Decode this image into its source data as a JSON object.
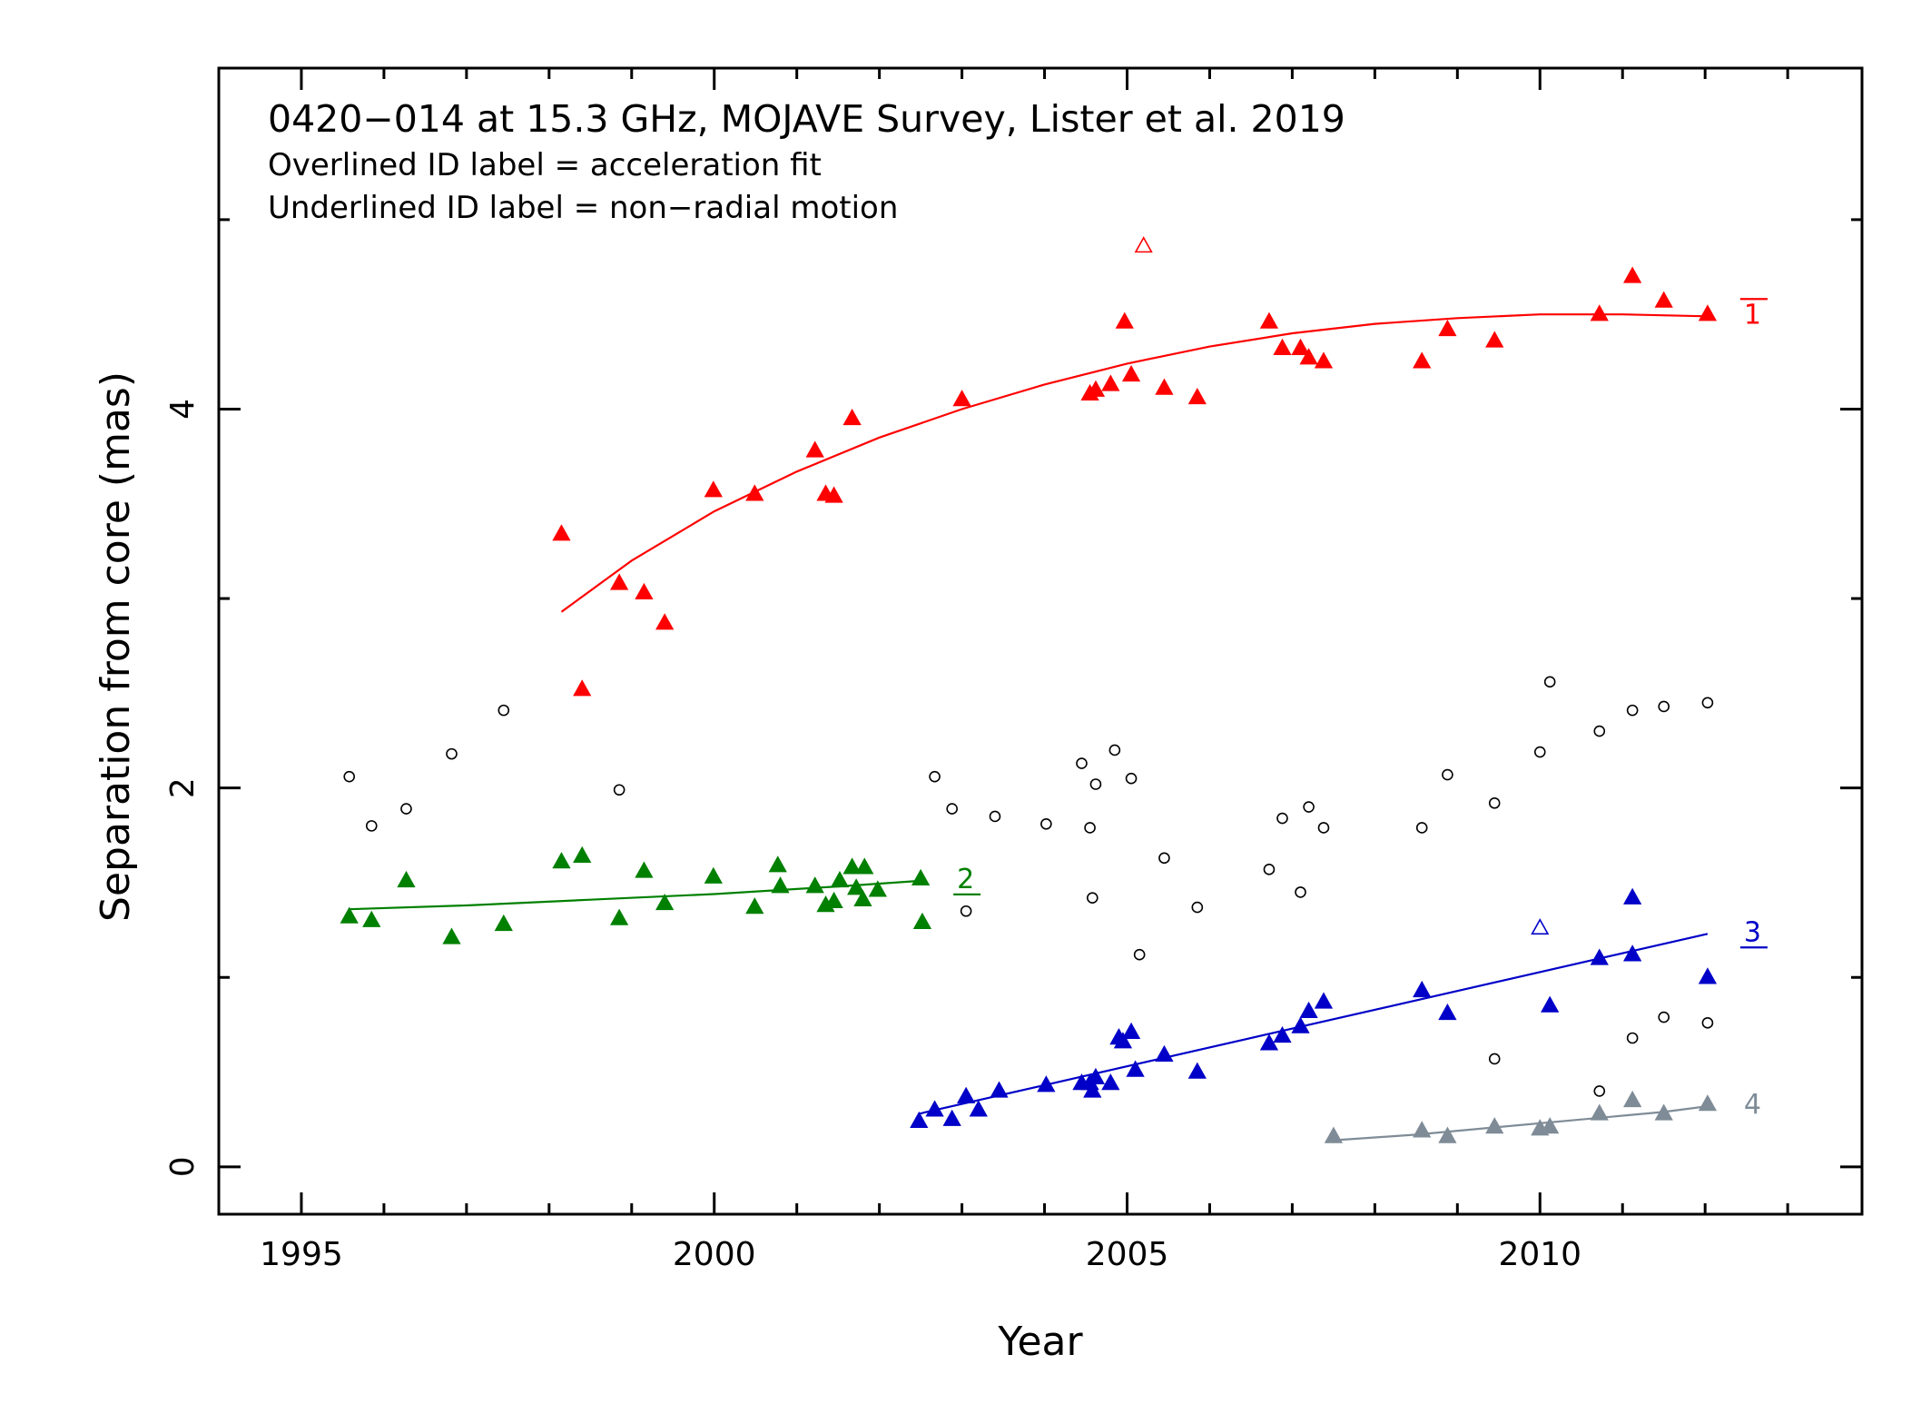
{
  "chart_data": {
    "type": "scatter",
    "title": "0420−014 at 15.3 GHz, MOJAVE Survey, Lister et al. 2019",
    "notes": [
      "Overlined ID label = acceleration fit",
      "Underlined ID label = non−radial motion"
    ],
    "xlabel": "Year",
    "ylabel": "Separation from core (mas)",
    "xlim": [
      1994,
      2013.9
    ],
    "ylim": [
      -0.25,
      5.8
    ],
    "xticks": [
      1995,
      2000,
      2005,
      2010
    ],
    "yticks": [
      0,
      2,
      4
    ],
    "series": [
      {
        "name": "1",
        "label_style": "overline",
        "color": "#ff0000",
        "points": [
          [
            1998.15,
            3.34
          ],
          [
            1998.4,
            2.52
          ],
          [
            1998.85,
            3.08
          ],
          [
            1999.15,
            3.03
          ],
          [
            1999.4,
            2.87
          ],
          [
            1999.99,
            3.57
          ],
          [
            2000.49,
            3.55
          ],
          [
            2001.22,
            3.78
          ],
          [
            2001.35,
            3.55
          ],
          [
            2001.45,
            3.54
          ],
          [
            2001.67,
            3.95
          ],
          [
            2003.0,
            4.05
          ],
          [
            2004.55,
            4.08
          ],
          [
            2004.62,
            4.1
          ],
          [
            2004.8,
            4.13
          ],
          [
            2004.97,
            4.46
          ],
          [
            2005.05,
            4.18
          ],
          [
            2005.45,
            4.11
          ],
          [
            2005.85,
            4.06
          ],
          [
            2006.72,
            4.46
          ],
          [
            2006.88,
            4.32
          ],
          [
            2007.1,
            4.32
          ],
          [
            2007.2,
            4.27
          ],
          [
            2007.38,
            4.25
          ],
          [
            2008.57,
            4.25
          ],
          [
            2008.88,
            4.42
          ],
          [
            2009.45,
            4.36
          ],
          [
            2010.72,
            4.5
          ],
          [
            2011.12,
            4.7
          ],
          [
            2011.5,
            4.57
          ],
          [
            2012.03,
            4.5
          ]
        ],
        "open_points": [
          [
            2005.2,
            4.86
          ]
        ],
        "fit": [
          [
            1998.15,
            2.93
          ],
          [
            1999.0,
            3.2
          ],
          [
            2000.0,
            3.46
          ],
          [
            2001.0,
            3.67
          ],
          [
            2002.0,
            3.85
          ],
          [
            2003.0,
            4.0
          ],
          [
            2004.0,
            4.13
          ],
          [
            2005.0,
            4.24
          ],
          [
            2006.0,
            4.33
          ],
          [
            2007.0,
            4.4
          ],
          [
            2008.0,
            4.45
          ],
          [
            2009.0,
            4.48
          ],
          [
            2010.0,
            4.5
          ],
          [
            2011.0,
            4.5
          ],
          [
            2012.03,
            4.49
          ]
        ]
      },
      {
        "name": "2",
        "label_style": "underline",
        "color": "#008000",
        "points": [
          [
            1995.58,
            1.32
          ],
          [
            1995.85,
            1.3
          ],
          [
            1996.27,
            1.51
          ],
          [
            1996.82,
            1.21
          ],
          [
            1997.45,
            1.28
          ],
          [
            1998.15,
            1.61
          ],
          [
            1998.4,
            1.64
          ],
          [
            1998.85,
            1.31
          ],
          [
            1999.15,
            1.56
          ],
          [
            1999.4,
            1.39
          ],
          [
            1999.99,
            1.53
          ],
          [
            2000.49,
            1.37
          ],
          [
            2000.77,
            1.59
          ],
          [
            2000.8,
            1.48
          ],
          [
            2001.22,
            1.48
          ],
          [
            2001.35,
            1.38
          ],
          [
            2001.45,
            1.4
          ],
          [
            2001.52,
            1.51
          ],
          [
            2001.67,
            1.58
          ],
          [
            2001.72,
            1.47
          ],
          [
            2001.8,
            1.41
          ],
          [
            2001.82,
            1.58
          ],
          [
            2001.98,
            1.46
          ],
          [
            2002.5,
            1.52
          ],
          [
            2002.52,
            1.29
          ]
        ],
        "open_points": [],
        "fit": [
          [
            1995.58,
            1.36
          ],
          [
            1997.0,
            1.38
          ],
          [
            1998.5,
            1.41
          ],
          [
            2000.0,
            1.44
          ],
          [
            2001.5,
            1.48
          ],
          [
            2002.5,
            1.51
          ]
        ]
      },
      {
        "name": "3",
        "label_style": "underline",
        "color": "#0000c8",
        "points": [
          [
            2002.48,
            0.24
          ],
          [
            2002.67,
            0.3
          ],
          [
            2002.88,
            0.25
          ],
          [
            2003.05,
            0.37
          ],
          [
            2003.2,
            0.3
          ],
          [
            2003.45,
            0.4
          ],
          [
            2004.02,
            0.43
          ],
          [
            2004.45,
            0.44
          ],
          [
            2004.55,
            0.44
          ],
          [
            2004.58,
            0.4
          ],
          [
            2004.62,
            0.47
          ],
          [
            2004.8,
            0.44
          ],
          [
            2004.9,
            0.68
          ],
          [
            2004.95,
            0.66
          ],
          [
            2005.05,
            0.71
          ],
          [
            2005.1,
            0.51
          ],
          [
            2005.45,
            0.59
          ],
          [
            2005.85,
            0.5
          ],
          [
            2006.72,
            0.65
          ],
          [
            2006.88,
            0.69
          ],
          [
            2007.1,
            0.74
          ],
          [
            2007.2,
            0.82
          ],
          [
            2007.38,
            0.87
          ],
          [
            2008.57,
            0.93
          ],
          [
            2008.88,
            0.81
          ],
          [
            2010.12,
            0.85
          ],
          [
            2010.72,
            1.1
          ],
          [
            2011.12,
            1.42
          ],
          [
            2011.12,
            1.12
          ],
          [
            2012.03,
            1.0
          ]
        ],
        "open_points": [
          [
            2010.0,
            1.26
          ]
        ],
        "fit": [
          [
            2002.48,
            0.28
          ],
          [
            2012.03,
            1.23
          ]
        ]
      },
      {
        "name": "4",
        "label_style": "plain",
        "color": "#7f8c97",
        "points": [
          [
            2007.5,
            0.16
          ],
          [
            2008.57,
            0.19
          ],
          [
            2008.88,
            0.16
          ],
          [
            2009.45,
            0.21
          ],
          [
            2010.0,
            0.2
          ],
          [
            2010.12,
            0.21
          ],
          [
            2010.72,
            0.28
          ],
          [
            2011.12,
            0.35
          ],
          [
            2011.5,
            0.28
          ],
          [
            2012.03,
            0.33
          ]
        ],
        "open_points": [],
        "fit": [
          [
            2007.5,
            0.14
          ],
          [
            2008.5,
            0.17
          ],
          [
            2009.5,
            0.21
          ],
          [
            2010.5,
            0.25
          ],
          [
            2011.5,
            0.29
          ],
          [
            2012.03,
            0.32
          ]
        ]
      },
      {
        "name": "",
        "label_style": "open-circle",
        "color": "#000000",
        "points": [
          [
            1995.58,
            2.06
          ],
          [
            1995.85,
            1.8
          ],
          [
            1996.27,
            1.89
          ],
          [
            1996.82,
            2.18
          ],
          [
            1997.45,
            2.41
          ],
          [
            1998.85,
            1.99
          ],
          [
            2002.67,
            2.06
          ],
          [
            2002.88,
            1.89
          ],
          [
            2003.05,
            1.35
          ],
          [
            2003.4,
            1.85
          ],
          [
            2004.02,
            1.81
          ],
          [
            2004.45,
            2.13
          ],
          [
            2004.55,
            1.79
          ],
          [
            2004.58,
            1.42
          ],
          [
            2004.62,
            2.02
          ],
          [
            2004.85,
            2.2
          ],
          [
            2005.05,
            2.05
          ],
          [
            2005.15,
            1.12
          ],
          [
            2005.45,
            1.63
          ],
          [
            2005.85,
            1.37
          ],
          [
            2006.72,
            1.57
          ],
          [
            2006.88,
            1.84
          ],
          [
            2007.1,
            1.45
          ],
          [
            2007.2,
            1.9
          ],
          [
            2007.38,
            1.79
          ],
          [
            2008.57,
            1.79
          ],
          [
            2008.88,
            2.07
          ],
          [
            2009.45,
            1.92
          ],
          [
            2010.0,
            2.19
          ],
          [
            2010.12,
            2.56
          ],
          [
            2010.72,
            2.3
          ],
          [
            2010.72,
            0.4
          ],
          [
            2011.12,
            2.41
          ],
          [
            2011.12,
            0.68
          ],
          [
            2011.5,
            2.43
          ],
          [
            2011.5,
            0.79
          ],
          [
            2012.03,
            2.45
          ],
          [
            2012.03,
            0.76
          ],
          [
            2009.45,
            0.57
          ]
        ]
      }
    ]
  }
}
